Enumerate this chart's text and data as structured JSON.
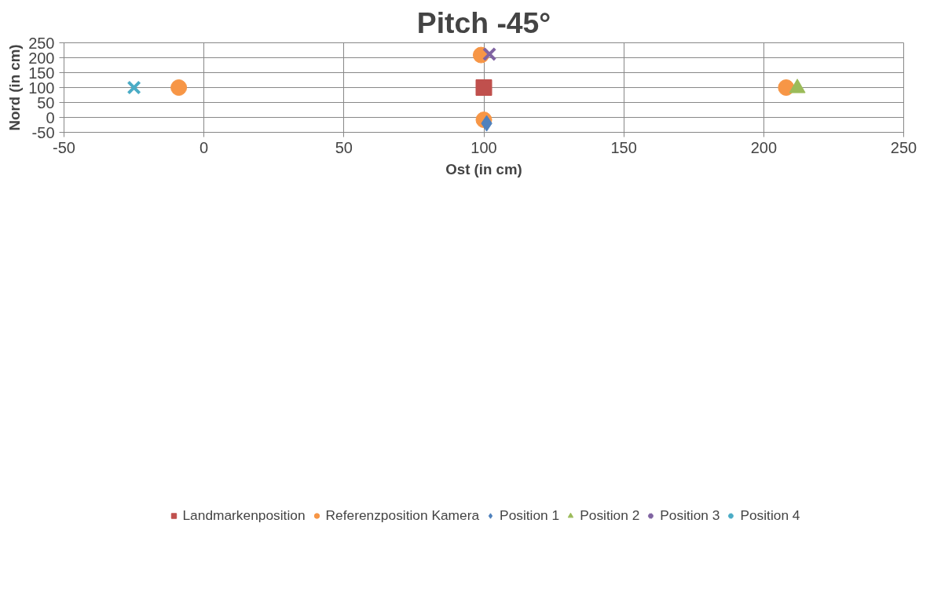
{
  "chart_data": {
    "type": "scatter",
    "title": "Pitch -45°",
    "xlabel": "Ost (in cm)",
    "ylabel": "Nord (in cm)",
    "xlim": [
      -50,
      250
    ],
    "ylim": [
      -50,
      250
    ],
    "xticks": [
      -50,
      0,
      50,
      100,
      150,
      200,
      250
    ],
    "yticks": [
      -50,
      0,
      50,
      100,
      150,
      200,
      250
    ],
    "grid": true,
    "legend": "bottom",
    "series": [
      {
        "name": "Landmarkenposition",
        "color": "#c0504d",
        "marker": "square",
        "x": [
          100
        ],
        "values": [
          100
        ]
      },
      {
        "name": "Referenzposition Kamera",
        "color": "#f79646",
        "marker": "circle",
        "x": [
          -9,
          100,
          99,
          208
        ],
        "values": [
          100,
          -8,
          209,
          100
        ]
      },
      {
        "name": "Position 1",
        "color": "#4f81bd",
        "marker": "diamond",
        "x": [
          101
        ],
        "values": [
          -20
        ]
      },
      {
        "name": "Position 2",
        "color": "#9bbb59",
        "marker": "triangle",
        "x": [
          212
        ],
        "values": [
          98
        ]
      },
      {
        "name": "Position 3",
        "color": "#8064a2",
        "marker": "cross",
        "x": [
          102
        ],
        "values": [
          212
        ]
      },
      {
        "name": "Position 4",
        "color": "#4bacc6",
        "marker": "cross",
        "x": [
          -25
        ],
        "values": [
          100
        ]
      }
    ]
  }
}
